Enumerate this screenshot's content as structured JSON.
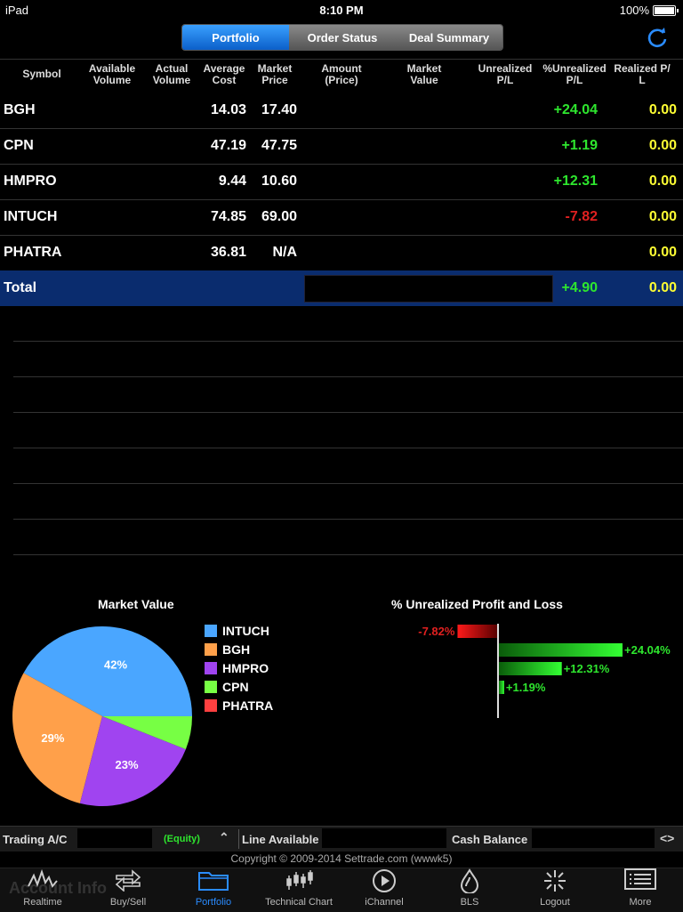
{
  "status_bar": {
    "device": "iPad",
    "time": "8:10 PM",
    "battery": "100%"
  },
  "segments": [
    {
      "label": "Portfolio",
      "active": true
    },
    {
      "label": "Order Status",
      "active": false
    },
    {
      "label": "Deal Summary",
      "active": false
    }
  ],
  "headers": {
    "symbol": "Symbol",
    "available_volume": "Available Volume",
    "actual_volume": "Actual Volume",
    "average_cost": "Average Cost",
    "market_price": "Market Price",
    "amount_price": "Amount (Price)",
    "market_value": "Market Value",
    "unrealized_pl": "Unrealized P/L",
    "pct_unrealized_pl": "%Unrealized P/L",
    "realized_pl": "Realized P/ L"
  },
  "rows": [
    {
      "symbol": "BGH",
      "avg_cost": "14.03",
      "market_price": "17.40",
      "pct_unrealized": "+24.04",
      "realized": "0.00"
    },
    {
      "symbol": "CPN",
      "avg_cost": "47.19",
      "market_price": "47.75",
      "pct_unrealized": "+1.19",
      "realized": "0.00"
    },
    {
      "symbol": "HMPRO",
      "avg_cost": "9.44",
      "market_price": "10.60",
      "pct_unrealized": "+12.31",
      "realized": "0.00"
    },
    {
      "symbol": "INTUCH",
      "avg_cost": "74.85",
      "market_price": "69.00",
      "pct_unrealized": "-7.82",
      "realized": "0.00"
    },
    {
      "symbol": "PHATRA",
      "avg_cost": "36.81",
      "market_price": "N/A",
      "pct_unrealized": "",
      "realized": "0.00"
    }
  ],
  "total": {
    "label": "Total",
    "pct_unrealized": "+4.90",
    "realized": "0.00"
  },
  "chart_data": [
    {
      "type": "pie",
      "title": "Market Value",
      "categories": [
        "INTUCH",
        "BGH",
        "HMPRO",
        "CPN",
        "PHATRA"
      ],
      "values": [
        42,
        29,
        23,
        6,
        0
      ],
      "labels": [
        "42%",
        "29%",
        "23%",
        "",
        ""
      ],
      "colors": [
        "#4aa6ff",
        "#ffa04a",
        "#a044f0",
        "#77ff44",
        "#ff4040"
      ]
    },
    {
      "type": "bar",
      "title": "% Unrealized Profit and Loss",
      "categories": [
        "INTUCH",
        "BGH",
        "HMPRO",
        "CPN"
      ],
      "values": [
        -7.82,
        24.04,
        12.31,
        1.19
      ],
      "labels": [
        "-7.82%",
        "+24.04%",
        "+12.31%",
        "+1.19%"
      ]
    }
  ],
  "info_bar": {
    "trading_ac": "Trading A/C",
    "equity": "(Equity)",
    "line_available": "Line Available",
    "cash_balance": "Cash Balance"
  },
  "copyright": "Copyright © 2009-2014 Settrade.com (wwwk5)",
  "faded_text": "Account Info",
  "tabs": [
    {
      "label": "Realtime",
      "icon": "realtime-icon",
      "active": false
    },
    {
      "label": "Buy/Sell",
      "icon": "buysell-icon",
      "active": false
    },
    {
      "label": "Portfolio",
      "icon": "folder-icon",
      "active": true
    },
    {
      "label": "Technical Chart",
      "icon": "candlestick-icon",
      "active": false
    },
    {
      "label": "iChannel",
      "icon": "play-icon",
      "active": false
    },
    {
      "label": "BLS",
      "icon": "bls-icon",
      "active": false
    },
    {
      "label": "Logout",
      "icon": "logout-icon",
      "active": false
    },
    {
      "label": "More",
      "icon": "more-icon",
      "active": false
    }
  ]
}
